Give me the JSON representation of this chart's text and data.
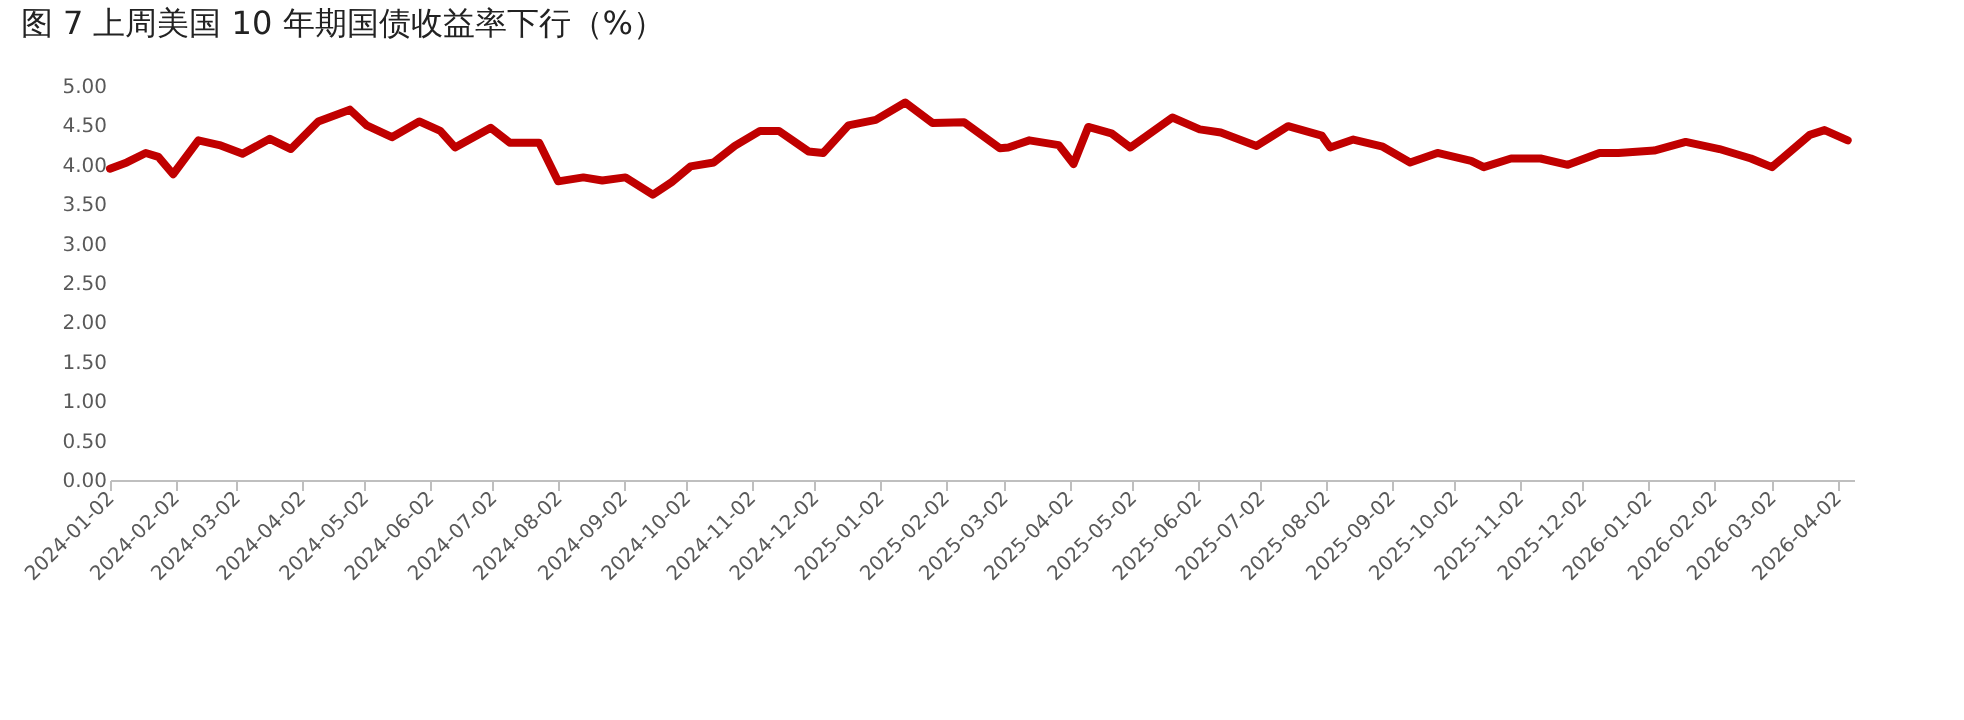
{
  "chart_data": {
    "type": "line",
    "title": "图 7  上周美国 10 年期国债收益率下行（%）",
    "x": [
      "2024-01-02",
      "2024-01-10",
      "2024-01-19",
      "2024-01-25",
      "2024-02-01",
      "2024-02-13",
      "2024-02-23",
      "2024-03-05",
      "2024-03-18",
      "2024-03-28",
      "2024-04-10",
      "2024-04-25",
      "2024-05-03",
      "2024-05-15",
      "2024-05-28",
      "2024-06-07",
      "2024-06-14",
      "2024-07-01",
      "2024-07-10",
      "2024-07-24",
      "2024-08-02",
      "2024-08-14",
      "2024-08-23",
      "2024-09-03",
      "2024-09-16",
      "2024-09-25",
      "2024-10-04",
      "2024-10-15",
      "2024-10-25",
      "2024-11-06",
      "2024-11-15",
      "2024-11-29",
      "2024-12-06",
      "2024-12-18",
      "2024-12-31",
      "2025-01-14",
      "2025-01-27",
      "2025-02-11",
      "2025-02-28",
      "2025-03-04",
      "2025-03-14",
      "2025-03-28",
      "2025-04-04",
      "2025-04-11",
      "2025-04-22",
      "2025-05-01",
      "2025-05-21",
      "2025-06-03",
      "2025-06-13",
      "2025-06-30",
      "2025-07-15",
      "2025-07-31",
      "2025-08-04",
      "2025-08-15",
      "2025-08-29",
      "2025-09-11",
      "2025-09-24",
      "2025-10-10",
      "2025-10-16",
      "2025-10-29",
      "2025-11-12",
      "2025-11-25",
      "2025-12-10",
      "2025-12-19",
      "2026-01-05",
      "2026-01-20",
      "2026-02-05",
      "2026-02-20",
      "2026-03-02",
      "2026-03-20",
      "2026-03-27",
      "2026-04-07"
    ],
    "series": [
      {
        "color": "#c00000",
        "values": [
          3.95,
          4.03,
          4.15,
          4.1,
          3.88,
          4.31,
          4.25,
          4.14,
          4.33,
          4.2,
          4.55,
          4.7,
          4.5,
          4.35,
          4.55,
          4.43,
          4.22,
          4.47,
          4.28,
          4.28,
          3.79,
          3.84,
          3.8,
          3.84,
          3.62,
          3.78,
          3.98,
          4.03,
          4.24,
          4.43,
          4.43,
          4.17,
          4.15,
          4.5,
          4.57,
          4.79,
          4.53,
          4.54,
          4.21,
          4.22,
          4.31,
          4.25,
          4.01,
          4.48,
          4.4,
          4.22,
          4.6,
          4.45,
          4.41,
          4.24,
          4.49,
          4.37,
          4.22,
          4.32,
          4.23,
          4.03,
          4.15,
          4.05,
          3.97,
          4.08,
          4.08,
          4.0,
          4.15,
          4.15,
          4.18,
          4.29,
          4.2,
          4.08,
          3.97,
          4.38,
          4.44,
          4.31
        ]
      }
    ],
    "xlim": [
      "2024-01-02",
      "2026-04-10"
    ],
    "xticks": [
      "2024-01-02",
      "2024-02-02",
      "2024-03-02",
      "2024-04-02",
      "2024-05-02",
      "2024-06-02",
      "2024-07-02",
      "2024-08-02",
      "2024-09-02",
      "2024-10-02",
      "2024-11-02",
      "2024-12-02",
      "2025-01-02",
      "2025-02-02",
      "2025-03-02",
      "2025-04-02",
      "2025-05-02",
      "2025-06-02",
      "2025-07-02",
      "2025-08-02",
      "2025-09-02",
      "2025-10-02",
      "2025-11-02",
      "2025-12-02",
      "2026-01-02",
      "2026-02-02",
      "2026-03-02",
      "2026-04-02"
    ],
    "ylim": [
      0,
      5
    ],
    "yticks": [
      {
        "value": 0,
        "label": "0.00"
      },
      {
        "value": 0.5,
        "label": "0.50"
      },
      {
        "value": 1,
        "label": "1.00"
      },
      {
        "value": 1.5,
        "label": "1.50"
      },
      {
        "value": 2,
        "label": "2.00"
      },
      {
        "value": 2.5,
        "label": "2.50"
      },
      {
        "value": 3,
        "label": "3.00"
      },
      {
        "value": 3.5,
        "label": "3.50"
      },
      {
        "value": 4,
        "label": "4.00"
      },
      {
        "value": 4.5,
        "label": "4.50"
      },
      {
        "value": 5,
        "label": "5.00"
      }
    ],
    "grid": false,
    "marker": "none",
    "line_style": "solid"
  }
}
